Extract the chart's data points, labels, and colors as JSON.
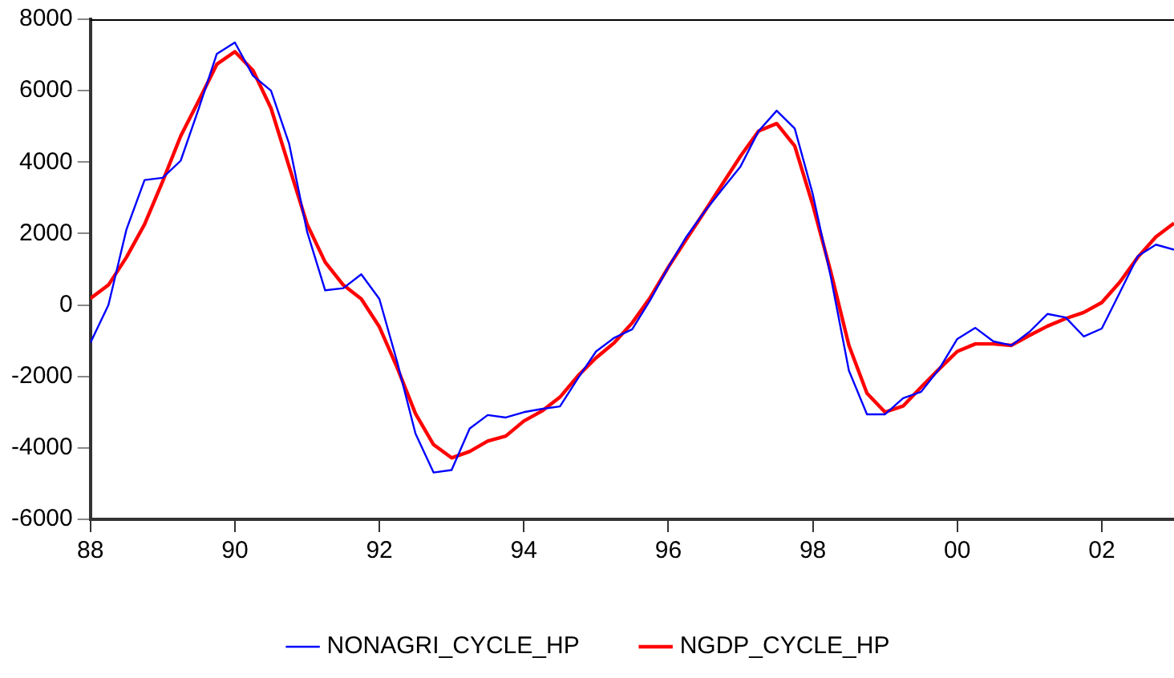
{
  "chart_data": {
    "type": "line",
    "x": [
      1988,
      1988.25,
      1988.5,
      1988.75,
      1989,
      1989.25,
      1989.5,
      1989.75,
      1990,
      1990.25,
      1990.5,
      1990.75,
      1991,
      1991.25,
      1991.5,
      1991.75,
      1992,
      1992.25,
      1992.5,
      1992.75,
      1993,
      1993.25,
      1993.5,
      1993.75,
      1994,
      1994.25,
      1994.5,
      1994.75,
      1995,
      1995.25,
      1995.5,
      1995.75,
      1996,
      1996.25,
      1996.5,
      1996.75,
      1997,
      1997.25,
      1997.5,
      1997.75,
      1998,
      1998.25,
      1998.5,
      1998.75,
      1999,
      1999.25,
      1999.5,
      1999.75,
      2000,
      2000.25,
      2000.5,
      2000.75,
      2001,
      2001.25,
      2001.5,
      2001.75,
      2002,
      2002.25,
      2002.5,
      2002.75,
      2003
    ],
    "series": [
      {
        "name": "NONAGRI_CYCLE_HP",
        "color": "#0000ff",
        "values": [
          -1060,
          0,
          2120,
          3500,
          3560,
          4040,
          5500,
          7030,
          7350,
          6420,
          6000,
          4520,
          2050,
          410,
          470,
          860,
          170,
          -1620,
          -3600,
          -4690,
          -4620,
          -3460,
          -3080,
          -3150,
          -3000,
          -2910,
          -2840,
          -2050,
          -1300,
          -920,
          -680,
          140,
          1060,
          1910,
          2610,
          3250,
          3880,
          4870,
          5440,
          4940,
          3100,
          780,
          -1840,
          -3060,
          -3060,
          -2610,
          -2430,
          -1790,
          -950,
          -640,
          -1020,
          -1130,
          -750,
          -250,
          -350,
          -880,
          -660,
          350,
          1370,
          1690,
          1550
        ]
      },
      {
        "name": "NGDP_CYCLE_HP",
        "color": "#ff0000",
        "values": [
          180,
          560,
          1340,
          2260,
          3460,
          4730,
          5720,
          6740,
          7090,
          6570,
          5510,
          3880,
          2260,
          1200,
          560,
          170,
          -610,
          -1770,
          -3040,
          -3910,
          -4280,
          -4100,
          -3810,
          -3670,
          -3250,
          -2970,
          -2580,
          -1980,
          -1480,
          -1060,
          -500,
          210,
          1060,
          1840,
          2610,
          3390,
          4170,
          4870,
          5080,
          4450,
          2800,
          920,
          -1130,
          -2470,
          -3000,
          -2830,
          -2300,
          -1790,
          -1300,
          -1090,
          -1090,
          -1130,
          -850,
          -590,
          -380,
          -210,
          70,
          640,
          1340,
          1910,
          2290
        ]
      }
    ],
    "xlim": [
      1988,
      2003
    ],
    "xticks": [
      {
        "value": 1988,
        "label": "88"
      },
      {
        "value": 1990,
        "label": "90"
      },
      {
        "value": 1992,
        "label": "92"
      },
      {
        "value": 1994,
        "label": "94"
      },
      {
        "value": 1996,
        "label": "96"
      },
      {
        "value": 1998,
        "label": "98"
      },
      {
        "value": 2000,
        "label": "00"
      },
      {
        "value": 2002,
        "label": "02"
      }
    ],
    "ylim": [
      -6000,
      8000
    ],
    "yticks": [
      -6000,
      -4000,
      -2000,
      0,
      2000,
      4000,
      6000,
      8000
    ],
    "grid": false,
    "legend": "bottom",
    "line_style": "solid",
    "marker": "none"
  }
}
